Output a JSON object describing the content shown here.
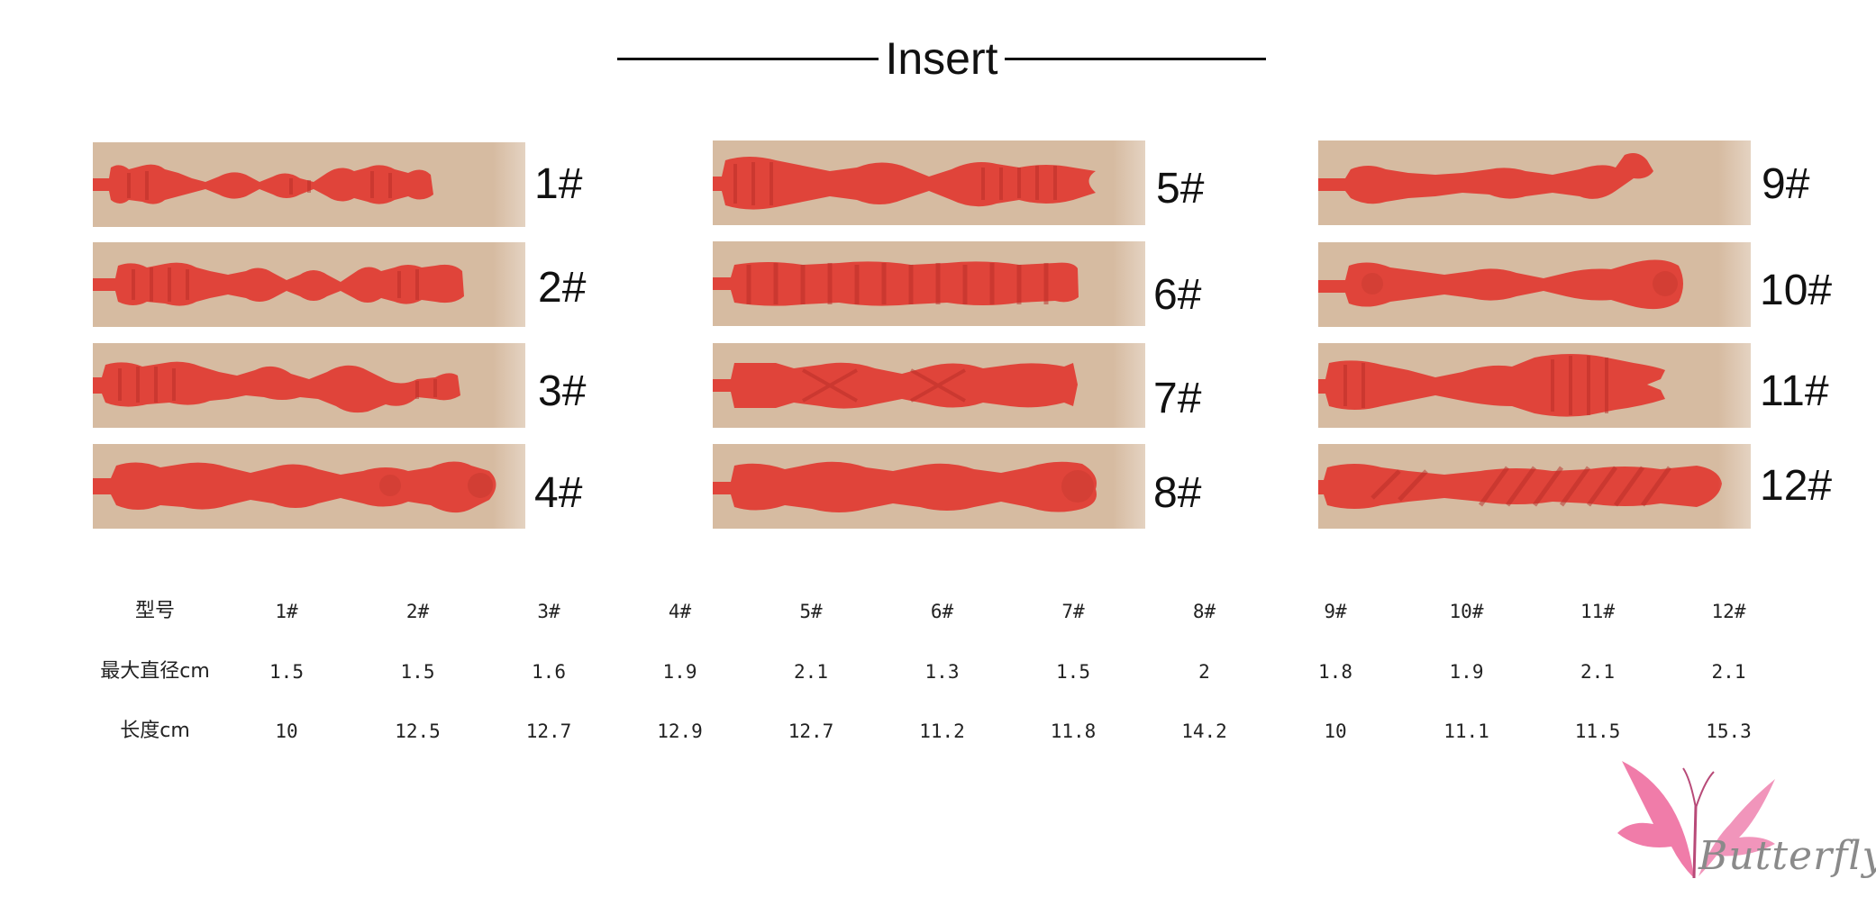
{
  "title": "Insert",
  "products": [
    {
      "label": "1#"
    },
    {
      "label": "2#"
    },
    {
      "label": "3#"
    },
    {
      "label": "4#"
    },
    {
      "label": "5#"
    },
    {
      "label": "6#"
    },
    {
      "label": "7#"
    },
    {
      "label": "8#"
    },
    {
      "label": "9#"
    },
    {
      "label": "10#"
    },
    {
      "label": "11#"
    },
    {
      "label": "12#"
    }
  ],
  "colors": {
    "insert_red": "#e0443a",
    "photo_bg": "#d6bba1",
    "logo_pink": "#ee6ea0"
  },
  "table": {
    "rows": [
      {
        "header": "型号",
        "values": [
          "1#",
          "2#",
          "3#",
          "4#",
          "5#",
          "6#",
          "7#",
          "8#",
          "9#",
          "10#",
          "11#",
          "12#"
        ]
      },
      {
        "header": "最大直径cm",
        "values": [
          "1.5",
          "1.5",
          "1.6",
          "1.9",
          "2.1",
          "1.3",
          "1.5",
          "2",
          "1.8",
          "1.9",
          "2.1",
          "2.1"
        ]
      },
      {
        "header": "长度cm",
        "values": [
          "10",
          "12.5",
          "12.7",
          "12.9",
          "12.7",
          "11.2",
          "11.8",
          "14.2",
          "10",
          "11.1",
          "11.5",
          "15.3"
        ]
      }
    ]
  },
  "logo": {
    "text": "Butterfly",
    "icon": "butterfly-icon"
  }
}
